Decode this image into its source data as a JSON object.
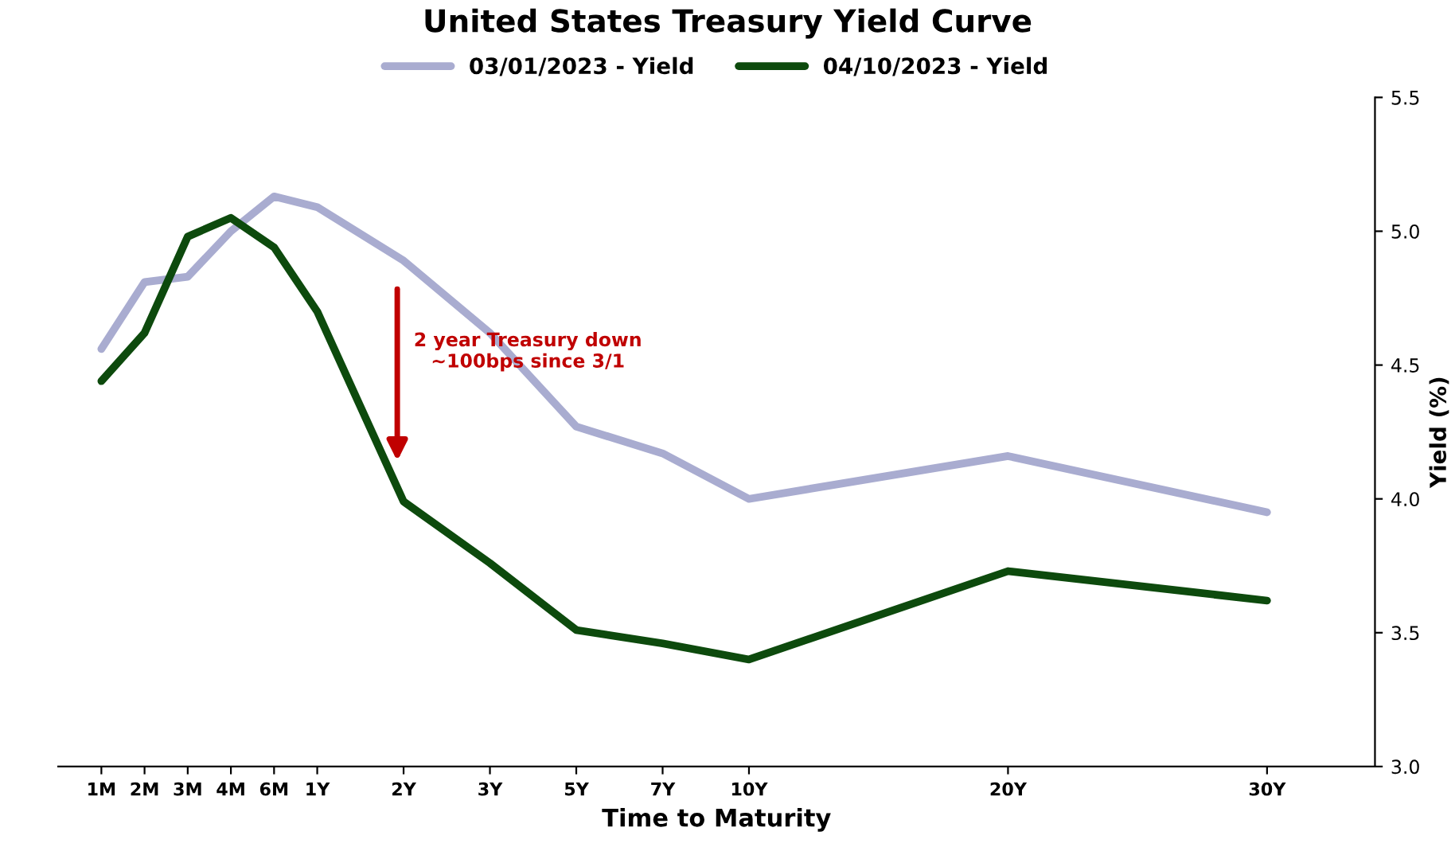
{
  "chart_data": {
    "type": "line",
    "title": "United States Treasury Yield Curve",
    "xlabel": "Time to Maturity",
    "ylabel": "Yield (%)",
    "categories": [
      "1M",
      "2M",
      "3M",
      "4M",
      "6M",
      "1Y",
      null,
      "2Y",
      null,
      "3Y",
      null,
      "5Y",
      null,
      "7Y",
      null,
      "10Y",
      null,
      null,
      null,
      null,
      null,
      "20Y",
      null,
      null,
      null,
      null,
      null,
      "30Y"
    ],
    "series": [
      {
        "name": "03/01/2023 - Yield",
        "color": "#a9acd0",
        "values": [
          4.56,
          4.81,
          4.83,
          5.0,
          5.13,
          5.09,
          null,
          4.89,
          null,
          4.62,
          null,
          4.27,
          null,
          4.17,
          null,
          4.0,
          null,
          null,
          null,
          null,
          null,
          4.16,
          null,
          null,
          null,
          null,
          null,
          3.95
        ]
      },
      {
        "name": "04/10/2023 - Yield",
        "color": "#0d4a0d",
        "values": [
          4.44,
          4.62,
          4.98,
          5.05,
          4.94,
          4.7,
          null,
          3.99,
          null,
          3.76,
          null,
          3.51,
          null,
          3.46,
          null,
          3.4,
          null,
          null,
          null,
          null,
          null,
          3.73,
          null,
          null,
          null,
          null,
          null,
          3.62
        ]
      }
    ],
    "ylim": [
      3.0,
      5.5
    ],
    "yticks": [
      {
        "value": 3.0,
        "label": "3.0"
      },
      {
        "value": 3.5,
        "label": "3.5"
      },
      {
        "value": 4.0,
        "label": "4.0"
      },
      {
        "value": 4.5,
        "label": "4.5"
      },
      {
        "value": 5.0,
        "label": "5.0"
      },
      {
        "value": 5.5,
        "label": "5.5"
      }
    ],
    "annotations": [
      "2 year Treasury down\n~100bps since 3/1"
    ],
    "legend": "top",
    "grid": false,
    "marker": "none",
    "line_style": "solid"
  }
}
